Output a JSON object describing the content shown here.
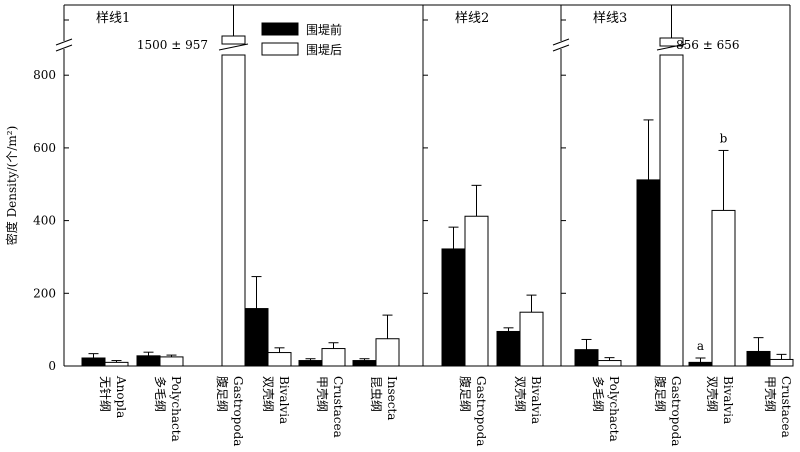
{
  "chart_data": {
    "type": "bar",
    "ylabel": "密度 Density/(个/m²)",
    "yticks": [
      0,
      200,
      400,
      600,
      800
    ],
    "ylim": [
      0,
      1000
    ],
    "axis_break": true,
    "legend": {
      "placement": "top-center-left",
      "entries": [
        {
          "label": "围堤前",
          "color": "#000000"
        },
        {
          "label": "围堤后",
          "color": "#ffffff"
        }
      ]
    },
    "panels": [
      {
        "title": "样线1",
        "categories": [
          {
            "zh": "无针纲",
            "en": "Anopla"
          },
          {
            "zh": "多毛纲",
            "en": "Polychacta"
          },
          {
            "zh": "腹足纲",
            "en": "Gastropoda"
          },
          {
            "zh": "双壳纲",
            "en": "Bivalvia"
          },
          {
            "zh": "甲壳纲",
            "en": "Crustacea"
          },
          {
            "zh": "昆虫纲",
            "en": "Insecta"
          }
        ],
        "series": [
          {
            "name": "围堤前",
            "values": [
              22,
              28,
              0,
              158,
              15,
              15
            ],
            "errors": [
              12,
              10,
              0,
              88,
              5,
              5
            ]
          },
          {
            "name": "围堤后",
            "values": [
              10,
              25,
              1500,
              37,
              48,
              75
            ],
            "errors": [
              5,
              5,
              957,
              13,
              16,
              65
            ],
            "broken": [
              false,
              false,
              true,
              false,
              false,
              false
            ]
          }
        ],
        "annotations": [
          {
            "text": "1500 ± 957",
            "category": 2
          }
        ]
      },
      {
        "title": "样线2",
        "categories": [
          {
            "zh": "腹足纲",
            "en": "Gastropoda"
          },
          {
            "zh": "双壳纲",
            "en": "Bivalvia"
          }
        ],
        "series": [
          {
            "name": "围堤前",
            "values": [
              322,
              95
            ],
            "errors": [
              60,
              10
            ]
          },
          {
            "name": "围堤后",
            "values": [
              412,
              148
            ],
            "errors": [
              85,
              47
            ]
          }
        ],
        "annotations": []
      },
      {
        "title": "样线3",
        "categories": [
          {
            "zh": "多毛纲",
            "en": "Polychacta"
          },
          {
            "zh": "腹足纲",
            "en": "Gastropoda"
          },
          {
            "zh": "双壳纲",
            "en": "Bivalvia"
          },
          {
            "zh": "甲壳纲",
            "en": "Crustacea"
          }
        ],
        "series": [
          {
            "name": "围堤前",
            "values": [
              45,
              512,
              10,
              40
            ],
            "errors": [
              28,
              165,
              12,
              38
            ]
          },
          {
            "name": "围堤后",
            "values": [
              15,
              856,
              428,
              18
            ],
            "errors": [
              8,
              656,
              165,
              14
            ],
            "broken": [
              false,
              true,
              false,
              false
            ]
          }
        ],
        "annotations": [
          {
            "text": "856 ± 656",
            "category": 1
          },
          {
            "text": "a",
            "category": 2,
            "series": 0
          },
          {
            "text": "b",
            "category": 2,
            "series": 1
          }
        ]
      }
    ]
  }
}
